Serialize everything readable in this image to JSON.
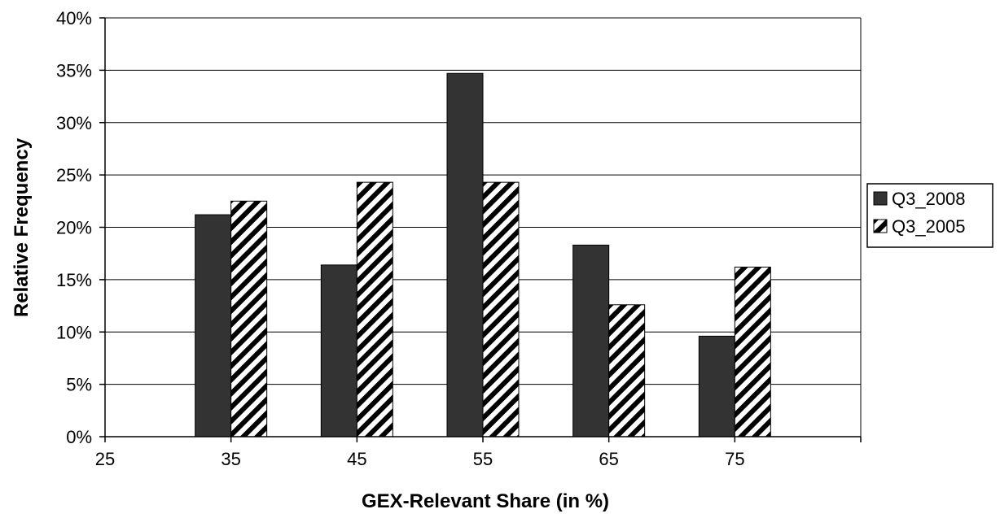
{
  "chart_data": {
    "type": "bar",
    "x_ticks": [
      "25",
      "35",
      "45",
      "55",
      "65",
      "75"
    ],
    "categories": [
      "35",
      "45",
      "55",
      "65",
      "75"
    ],
    "series": [
      {
        "name": "Q3_2008",
        "values": [
          21.2,
          16.4,
          34.7,
          18.3,
          9.6
        ],
        "color": "#333333",
        "pattern": "solid"
      },
      {
        "name": "Q3_2005",
        "values": [
          22.5,
          24.3,
          24.3,
          12.6,
          16.2
        ],
        "color": "#000000",
        "pattern": "diagonal-hatch"
      }
    ],
    "y_ticks": [
      "0%",
      "5%",
      "10%",
      "15%",
      "20%",
      "25%",
      "30%",
      "35%",
      "40%"
    ],
    "ylim": [
      0,
      40
    ],
    "xlabel": "GEX-Relevant Share (in %)",
    "ylabel": "Relative Frequency",
    "grid": true,
    "legend_position": "right"
  }
}
